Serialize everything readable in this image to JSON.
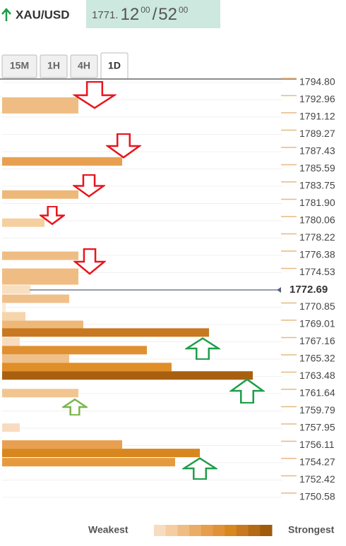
{
  "header": {
    "symbol": "XAU/USD",
    "price_main": "1771.",
    "price_big": "12",
    "price_sup": "00",
    "separator": "/",
    "price_big2": "52",
    "price_sup2": "00"
  },
  "tabs": {
    "items": [
      "15M",
      "1H",
      "4H",
      "1D"
    ],
    "active": 3
  },
  "chart_data": {
    "type": "bar",
    "orientation": "horizontal",
    "ylim": [
      1750.58,
      1794.8
    ],
    "yticks": [
      {
        "value": 1794.8,
        "label": "1794.80"
      },
      {
        "value": 1792.96,
        "label": "1792.96"
      },
      {
        "value": 1791.12,
        "label": "1791.12"
      },
      {
        "value": 1789.27,
        "label": "1789.27"
      },
      {
        "value": 1787.43,
        "label": "1787.43"
      },
      {
        "value": 1785.59,
        "label": "1785.59"
      },
      {
        "value": 1783.75,
        "label": "1783.75"
      },
      {
        "value": 1781.9,
        "label": "1781.90"
      },
      {
        "value": 1780.06,
        "label": "1780.06"
      },
      {
        "value": 1778.22,
        "label": "1778.22"
      },
      {
        "value": 1776.38,
        "label": "1776.38"
      },
      {
        "value": 1774.53,
        "label": "1774.53"
      },
      {
        "value": 1770.85,
        "label": "1770.85"
      },
      {
        "value": 1769.01,
        "label": "1769.01"
      },
      {
        "value": 1767.16,
        "label": "1767.16"
      },
      {
        "value": 1765.32,
        "label": "1765.32"
      },
      {
        "value": 1763.48,
        "label": "1763.48"
      },
      {
        "value": 1761.64,
        "label": "1761.64"
      },
      {
        "value": 1759.79,
        "label": "1759.79"
      },
      {
        "value": 1757.95,
        "label": "1757.95"
      },
      {
        "value": 1756.11,
        "label": "1756.11"
      },
      {
        "value": 1754.27,
        "label": "1754.27"
      },
      {
        "value": 1752.42,
        "label": "1752.42"
      },
      {
        "value": 1750.58,
        "label": "1750.58"
      }
    ],
    "current": {
      "value": 1772.69,
      "label": "1772.69"
    },
    "y": [
      1792.77,
      1791.95,
      1786.39,
      1782.86,
      1779.86,
      1776.33,
      1774.53,
      1773.7,
      1772.73,
      1771.75,
      1770.78,
      1769.88,
      1768.97,
      1768.15,
      1767.17,
      1766.27,
      1765.37,
      1764.47,
      1763.57,
      1761.69,
      1758.01,
      1756.21,
      1755.31,
      1754.33
    ],
    "values": [
      108,
      108,
      170,
      108,
      60,
      108,
      108,
      108,
      40,
      95,
      5,
      33,
      115,
      293,
      25,
      205,
      95,
      240,
      355,
      108,
      25,
      170,
      280,
      245
    ],
    "colors": [
      "#efbd84",
      "#efbd84",
      "#e8a050",
      "#eeb878",
      "#f5cfa0",
      "#efbd84",
      "#efbd84",
      "#efbd84",
      "#f8dfc0",
      "#f0c08a",
      "#fbe9d6",
      "#f6d4ac",
      "#eeb878",
      "#c87820",
      "#f8dcc0",
      "#e09030",
      "#f0c08a",
      "#e08e28",
      "#a86010",
      "#f2c590",
      "#f8dcc0",
      "#e8a050",
      "#d8861e",
      "#e69a3e"
    ],
    "legend": {
      "low": "Weakest",
      "high": "Strongest",
      "colors": [
        "#f8dcc0",
        "#f4cda2",
        "#efbd84",
        "#eaac66",
        "#e69e4c",
        "#e29236",
        "#d8861e",
        "#c87820",
        "#b46a14",
        "#a05a0c"
      ]
    }
  }
}
